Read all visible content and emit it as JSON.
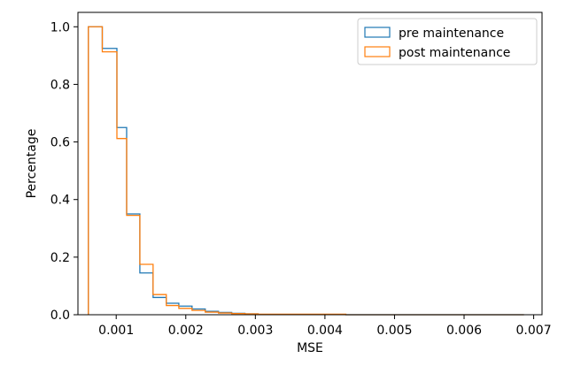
{
  "chart_data": {
    "type": "step-histogram",
    "xlabel": "MSE",
    "ylabel": "Percentage",
    "xlim": [
      0.00045,
      0.00712
    ],
    "ylim": [
      0,
      1.05
    ],
    "x_ticks": [
      {
        "value": 0.001,
        "label": "0.001"
      },
      {
        "value": 0.002,
        "label": "0.002"
      },
      {
        "value": 0.003,
        "label": "0.003"
      },
      {
        "value": 0.004,
        "label": "0.004"
      },
      {
        "value": 0.005,
        "label": "0.005"
      },
      {
        "value": 0.006,
        "label": "0.006"
      },
      {
        "value": 0.007,
        "label": "0.007"
      }
    ],
    "y_ticks": [
      {
        "value": 0.0,
        "label": "0.0"
      },
      {
        "value": 0.2,
        "label": "0.2"
      },
      {
        "value": 0.4,
        "label": "0.4"
      },
      {
        "value": 0.6,
        "label": "0.6"
      },
      {
        "value": 0.8,
        "label": "0.8"
      },
      {
        "value": 1.0,
        "label": "1.0"
      }
    ],
    "legend_position": "top-right",
    "series": [
      {
        "name": "pre maintenance",
        "color": "#1f77b4",
        "edges": [
          0.0006,
          0.0008,
          0.00101,
          0.00115,
          0.00134,
          0.00153,
          0.00172,
          0.0019,
          0.00209,
          0.00228,
          0.00247,
          0.00266,
          0.00285,
          0.00304,
          0.0043,
          0.00686
        ],
        "values": [
          1.0,
          0.925,
          0.65,
          0.35,
          0.145,
          0.06,
          0.04,
          0.03,
          0.02,
          0.012,
          0.008,
          0.005,
          0.003,
          0.001,
          0.0
        ]
      },
      {
        "name": "post maintenance",
        "color": "#ff7f0e",
        "edges": [
          0.0006,
          0.0008,
          0.00101,
          0.00115,
          0.00134,
          0.00153,
          0.00172,
          0.0019,
          0.00209,
          0.00228,
          0.00247,
          0.00266,
          0.00285,
          0.00304,
          0.0043,
          0.00686
        ],
        "values": [
          1.0,
          0.913,
          0.612,
          0.345,
          0.175,
          0.07,
          0.032,
          0.022,
          0.015,
          0.009,
          0.006,
          0.004,
          0.003,
          0.002,
          0.0
        ]
      }
    ]
  }
}
